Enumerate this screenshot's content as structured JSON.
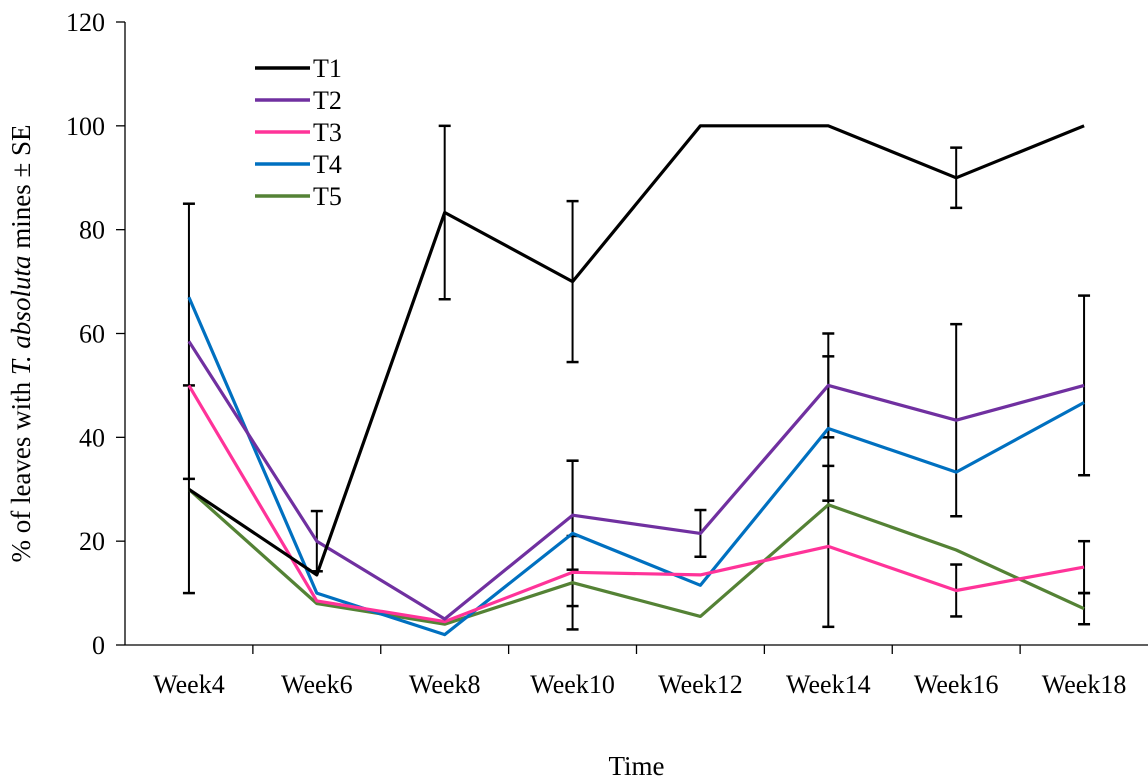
{
  "chart_data": {
    "type": "line",
    "title": "",
    "xlabel": "Time",
    "ylabel_prefix": "% of  leaves with ",
    "ylabel_italic": "T. absoluta",
    "ylabel_suffix": " mines ± SE",
    "categories": [
      "Week4",
      "Week6",
      "Week8",
      "Week10",
      "Week12",
      "Week14",
      "Week16",
      "Week18"
    ],
    "ylim": [
      0,
      120
    ],
    "yticks": [
      0,
      20,
      40,
      60,
      80,
      100,
      120
    ],
    "grid": false,
    "legend_position": "top-left",
    "series": [
      {
        "name": "T1",
        "color": "#000000",
        "values": [
          30,
          13.5,
          83.3,
          70,
          100,
          100,
          90,
          100
        ],
        "error": [
          20,
          0,
          16.7,
          15.5,
          0,
          0,
          5.8,
          0
        ]
      },
      {
        "name": "T2",
        "color": "#7030a0",
        "values": [
          58.5,
          20,
          5,
          25,
          21.5,
          50,
          43.3,
          50
        ],
        "error": [
          26.5,
          5.8,
          0,
          10.5,
          4.5,
          10,
          18.5,
          17.3
        ]
      },
      {
        "name": "T3",
        "color": "#ff3399",
        "values": [
          50,
          8.5,
          4.5,
          14,
          13.5,
          19,
          10.5,
          15
        ],
        "error": [
          0,
          0,
          0,
          0,
          0,
          15.5,
          5,
          5
        ]
      },
      {
        "name": "T4",
        "color": "#0070c0",
        "values": [
          67,
          10,
          2,
          21.5,
          11.5,
          41.7,
          33.3,
          46.7
        ],
        "error": [
          0,
          0,
          0,
          14,
          0,
          13.9,
          0,
          0
        ]
      },
      {
        "name": "T5",
        "color": "#548235",
        "values": [
          30,
          8,
          4,
          12,
          5.5,
          27,
          18.3,
          7
        ],
        "error": [
          0,
          0,
          0,
          9,
          0,
          0,
          0,
          3
        ]
      }
    ]
  }
}
